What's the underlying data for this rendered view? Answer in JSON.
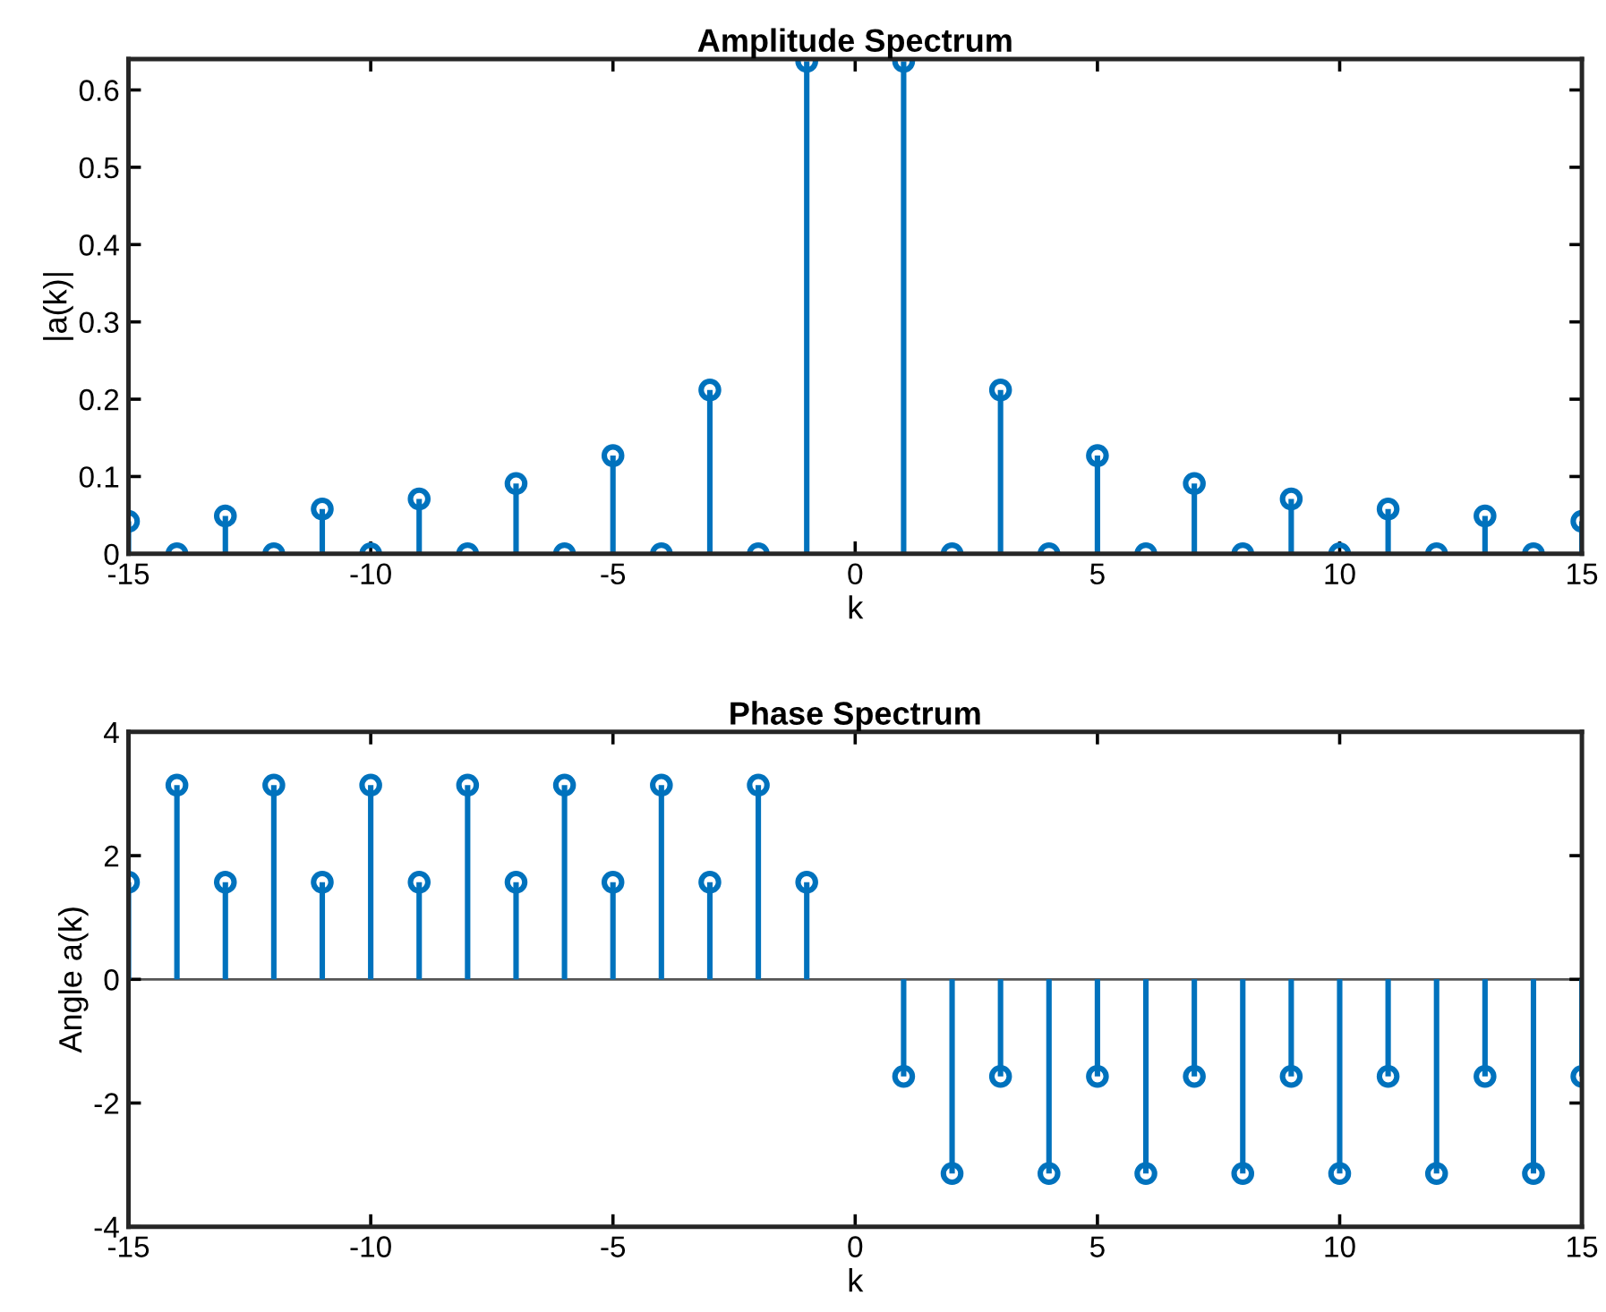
{
  "chart_data": [
    {
      "type": "lollipop",
      "title": "Amplitude Spectrum",
      "xlabel": "k",
      "ylabel": "|a(k)|",
      "x": [
        -15,
        -14,
        -13,
        -12,
        -11,
        -10,
        -9,
        -8,
        -7,
        -6,
        -5,
        -4,
        -3,
        -2,
        -1,
        0,
        1,
        2,
        3,
        4,
        5,
        6,
        7,
        8,
        9,
        10,
        11,
        12,
        13,
        14,
        15
      ],
      "values": [
        0.042,
        0,
        0.049,
        0,
        0.058,
        0,
        0.071,
        0,
        0.091,
        0,
        0.127,
        0,
        0.212,
        0,
        0.637,
        null,
        0.637,
        0,
        0.212,
        0,
        0.127,
        0,
        0.091,
        0,
        0.071,
        0,
        0.058,
        0,
        0.049,
        0,
        0.042
      ],
      "color": "#0072bd",
      "marker": "circle",
      "xlim": [
        -15,
        15
      ],
      "xticks": [
        -15,
        -10,
        -5,
        0,
        5,
        10,
        15
      ],
      "ylim": [
        0,
        0.64
      ],
      "yticks": [
        0,
        0.1,
        0.2,
        0.3,
        0.4,
        0.5,
        0.6
      ],
      "grid": false,
      "legend": false
    },
    {
      "type": "lollipop",
      "title": "Phase Spectrum",
      "xlabel": "k",
      "ylabel": "Angle a(k)",
      "x": [
        -15,
        -14,
        -13,
        -12,
        -11,
        -10,
        -9,
        -8,
        -7,
        -6,
        -5,
        -4,
        -3,
        -2,
        -1,
        0,
        1,
        2,
        3,
        4,
        5,
        6,
        7,
        8,
        9,
        10,
        11,
        12,
        13,
        14,
        15
      ],
      "values": [
        1.57,
        3.14,
        1.57,
        3.14,
        1.57,
        3.14,
        1.57,
        3.14,
        1.57,
        3.14,
        1.57,
        3.14,
        1.57,
        3.14,
        1.57,
        null,
        -1.57,
        -3.14,
        -1.57,
        -3.14,
        -1.57,
        -3.14,
        -1.57,
        -3.14,
        -1.57,
        -3.14,
        -1.57,
        -3.14,
        -1.57,
        -3.14,
        -1.57
      ],
      "color": "#0072bd",
      "marker": "circle",
      "xlim": [
        -15,
        15
      ],
      "xticks": [
        -15,
        -10,
        -5,
        0,
        5,
        10,
        15
      ],
      "ylim": [
        -4,
        4
      ],
      "yticks": [
        -4,
        -2,
        0,
        2,
        4
      ],
      "ref_lines": [
        {
          "axis": "y",
          "value": 0,
          "color": "#555555"
        }
      ],
      "grid": false,
      "legend": false
    }
  ]
}
